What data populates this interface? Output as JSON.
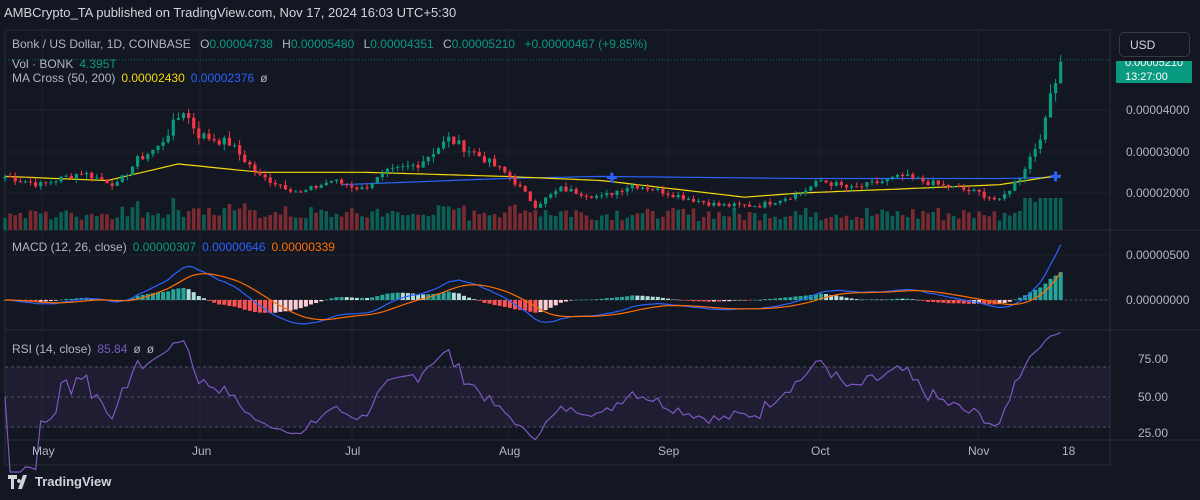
{
  "header": {
    "published": "AMBCrypto_TA published on TradingView.com, Nov 17, 2024 16:03 UTC+5:30"
  },
  "legend": {
    "symbol": "Bonk / US Dollar, 1D, COINBASE",
    "o_label": "O",
    "o": "0.00004738",
    "h_label": "H",
    "h": "0.00005480",
    "l_label": "L",
    "l": "0.00004351",
    "c_label": "C",
    "c": "0.00005210",
    "change": "+0.00000467 (+9.85%)",
    "vol_label": "Vol · BONK",
    "vol": "4.395T",
    "ma_label": "MA Cross (50, 200)",
    "ma50": "0.00002430",
    "ma200": "0.00002376",
    "ma_extra": "ø",
    "macd_label": "MACD (12, 26, close)",
    "macd_hist": "0.00000307",
    "macd": "0.00000646",
    "macd_signal": "0.00000339",
    "rsi_label": "RSI (14, close)",
    "rsi": "85.84",
    "rsi_extra1": "ø",
    "rsi_extra2": "ø"
  },
  "currency_button": "USD",
  "last_price": {
    "price": "0.00005210",
    "countdown": "13:27:00"
  },
  "price_axis": [
    "0.00004000",
    "0.00003000",
    "0.00002000"
  ],
  "macd_axis": [
    "0.00000500",
    "0.00000000"
  ],
  "rsi_axis": [
    "75.00",
    "50.00",
    "25.00"
  ],
  "x_axis": [
    "May",
    "Jun",
    "Jul",
    "Aug",
    "Sep",
    "Oct",
    "Nov",
    "18"
  ],
  "footer": {
    "brand": "TradingView"
  },
  "colors": {
    "up": "#089981",
    "down": "#f23645",
    "ma50": "#f5d90a",
    "ma200": "#2962ff",
    "macd": "#2962ff",
    "signal": "#ff6d00",
    "rsi": "#7e57c2"
  },
  "chart_data": {
    "type": "candlestick",
    "title": "Bonk / US Dollar, 1D, COINBASE",
    "start_date": "2024-04-24",
    "end_date": "2024-11-17",
    "price_unit": "USD x 0.000001",
    "close_keypoints": [
      [
        0,
        24
      ],
      [
        7,
        22
      ],
      [
        15,
        25
      ],
      [
        22,
        22
      ],
      [
        26,
        28
      ],
      [
        30,
        31
      ],
      [
        35,
        40
      ],
      [
        38,
        34
      ],
      [
        44,
        32
      ],
      [
        50,
        24
      ],
      [
        58,
        20
      ],
      [
        64,
        23
      ],
      [
        70,
        21
      ],
      [
        75,
        25
      ],
      [
        81,
        27
      ],
      [
        87,
        33
      ],
      [
        93,
        29
      ],
      [
        99,
        24
      ],
      [
        104,
        17
      ],
      [
        109,
        21
      ],
      [
        117,
        19
      ],
      [
        123,
        22
      ],
      [
        127,
        21
      ],
      [
        133,
        19
      ],
      [
        140,
        17
      ],
      [
        148,
        17
      ],
      [
        156,
        20
      ],
      [
        160,
        23
      ],
      [
        166,
        21
      ],
      [
        176,
        24
      ],
      [
        183,
        22
      ],
      [
        191,
        20
      ],
      [
        195,
        18
      ],
      [
        199,
        24
      ],
      [
        202,
        31
      ],
      [
        204,
        37
      ],
      [
        205,
        44
      ],
      [
        207,
        52
      ]
    ],
    "ma50_keypoints": [
      [
        0,
        24
      ],
      [
        20,
        23
      ],
      [
        34,
        27
      ],
      [
        50,
        25
      ],
      [
        70,
        25
      ],
      [
        98,
        24
      ],
      [
        117,
        23
      ],
      [
        145,
        19
      ],
      [
        156,
        20
      ],
      [
        176,
        21
      ],
      [
        195,
        22
      ],
      [
        207,
        24.3
      ]
    ],
    "ma200_keypoints": [
      [
        66,
        22
      ],
      [
        98,
        23.5
      ],
      [
        117,
        24
      ],
      [
        156,
        23.5
      ],
      [
        195,
        23.5
      ],
      [
        207,
        23.8
      ]
    ],
    "ma_crosses": [
      {
        "day": 119,
        "price": 23.7
      },
      {
        "day": 206,
        "price": 24
      }
    ],
    "price_ylim": [
      15,
      55
    ],
    "macd_ylim": [
      -3,
      7
    ],
    "rsi_ylim": [
      25,
      90
    ],
    "rsi_bands": [
      30,
      50,
      70
    ]
  }
}
